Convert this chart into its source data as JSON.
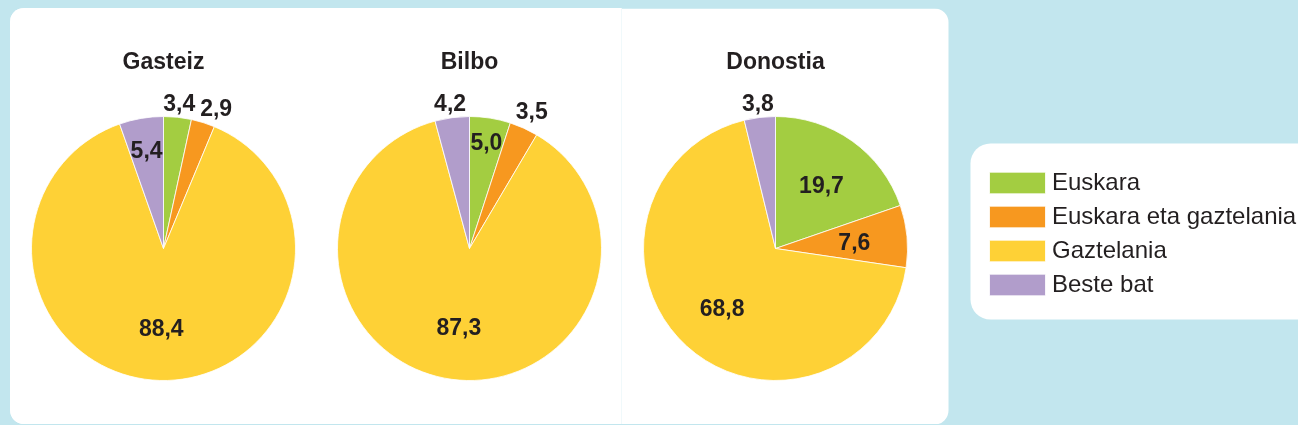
{
  "chart_data": [
    {
      "type": "pie",
      "title": "Gasteiz",
      "categories": [
        null,
        null,
        null,
        null
      ],
      "values": [
        3.4,
        2.9,
        88.4,
        5.4
      ],
      "value_labels": [
        "3,4",
        "2,9",
        "88,4",
        "5,4"
      ],
      "colors": [
        "#a3cd41",
        "#f7981f",
        "#fed136",
        "#b19dcb"
      ]
    },
    {
      "type": "pie",
      "title": "Bilbo",
      "categories": [
        null,
        null,
        null,
        null
      ],
      "values": [
        5.0,
        3.5,
        87.3,
        4.2
      ],
      "value_labels": [
        "5,0",
        "3,5",
        "87,3",
        "4,2"
      ],
      "colors": [
        "#a3cd41",
        "#f7981f",
        "#fed136",
        "#b19dcb"
      ]
    },
    {
      "type": "pie",
      "title": "Donostia",
      "categories": [
        "Euskara",
        "Euskara eta gaztelania",
        "Gaztelania",
        "Beste bat"
      ],
      "values": [
        19.7,
        7.6,
        68.8,
        3.8
      ],
      "value_labels": [
        "19,7",
        "7,6",
        "68,8",
        "3,8"
      ],
      "colors": [
        "#a3cd41",
        "#f7981f",
        "#fed136",
        "#b19dcb"
      ],
      "legend": "right"
    }
  ]
}
